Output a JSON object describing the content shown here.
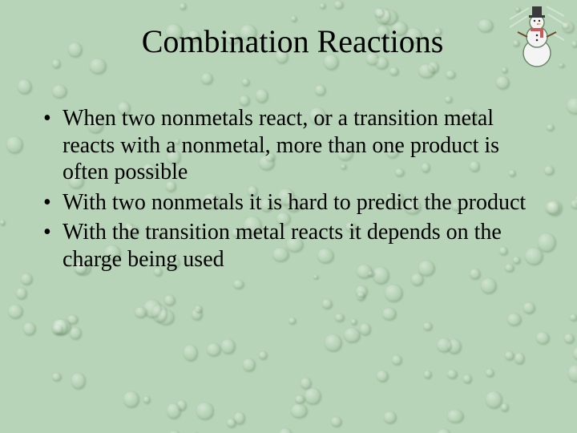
{
  "slide": {
    "title": "Combination Reactions",
    "bullets": [
      "When two nonmetals react, or a transition metal reacts with a nonmetal, more than one product is often possible",
      "With two nonmetals it is hard to predict the product",
      "With the transition metal reacts it depends on the charge being used"
    ],
    "background_color": "#b8d4b8",
    "title_fontsize": 40,
    "bullet_fontsize": 28,
    "text_color": "#000000",
    "decoration": {
      "type": "snowman-icon",
      "hat_color": "#3a3a3a",
      "body_color": "#f4f4f4",
      "scarf_color": "#c85a5a",
      "outline_color": "#6a8a6a",
      "highlight_lines_color": "#d0e4d0"
    },
    "droplet_pattern": {
      "base_color": "#b8d4b8",
      "highlight": "rgba(255,255,255,0.35)",
      "shadow": "rgba(60,90,60,0.25)",
      "count": 180,
      "size_min": 6,
      "size_max": 22
    }
  }
}
